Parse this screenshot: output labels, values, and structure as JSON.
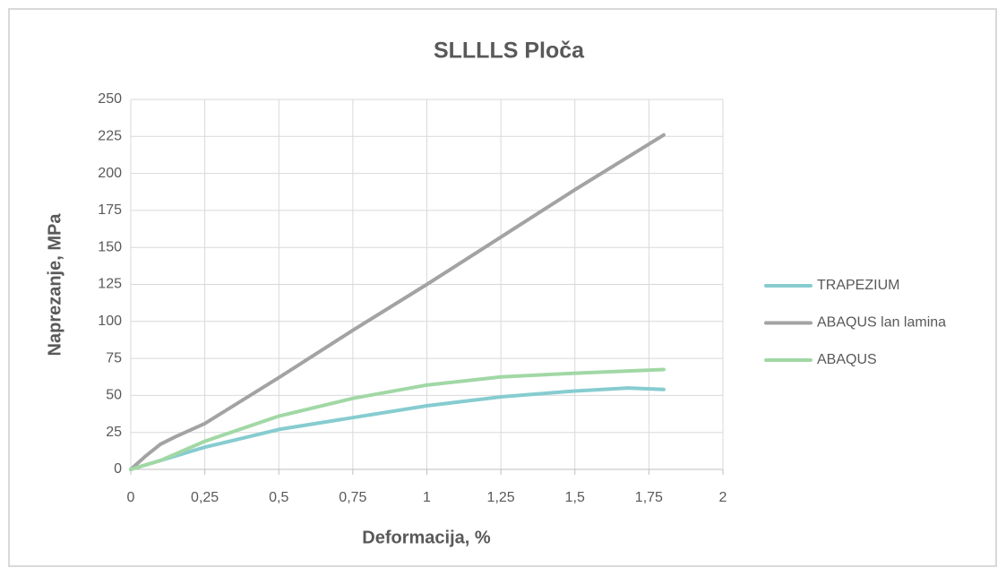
{
  "chart_data": {
    "type": "line",
    "title": "SLLLLS Ploča",
    "xlabel": "Deformacija, %",
    "ylabel": "Naprezanje, MPa",
    "xlim": [
      0,
      2
    ],
    "ylim": [
      0,
      250
    ],
    "xticks": [
      0,
      {
        "value": 0.25,
        "label": "0,25"
      },
      {
        "value": 0.5,
        "label": "0,5"
      },
      {
        "value": 0.75,
        "label": "0,75"
      },
      1,
      {
        "value": 1.25,
        "label": "1,25"
      },
      {
        "value": 1.5,
        "label": "1,5"
      },
      {
        "value": 1.75,
        "label": "1,75"
      },
      2
    ],
    "yticks": [
      0,
      25,
      50,
      75,
      100,
      125,
      150,
      175,
      200,
      225,
      250
    ],
    "grid": true,
    "legend": "right",
    "series": [
      {
        "name": "TRAPEZIUM",
        "color": "#86ccd0",
        "x": [
          0,
          0.1,
          0.25,
          0.5,
          0.75,
          1,
          1.25,
          1.5,
          1.68,
          1.8
        ],
        "values": [
          0,
          6,
          15,
          27,
          35,
          43,
          49,
          53,
          55,
          54
        ]
      },
      {
        "name": "ABAQUS lan lamina",
        "color": "#a3a3a3",
        "x": [
          0,
          0.05,
          0.1,
          0.15,
          0.25,
          0.5,
          0.75,
          1,
          1.25,
          1.5,
          1.8
        ],
        "values": [
          0,
          9,
          17,
          22,
          31,
          62,
          94,
          125,
          157,
          189,
          226
        ]
      },
      {
        "name": "ABAQUS",
        "color": "#a1d8a5",
        "x": [
          0,
          0.1,
          0.25,
          0.5,
          0.75,
          1,
          1.25,
          1.5,
          1.8
        ],
        "values": [
          0,
          6,
          19,
          36,
          48,
          57,
          62.5,
          65,
          67.5
        ]
      }
    ]
  }
}
